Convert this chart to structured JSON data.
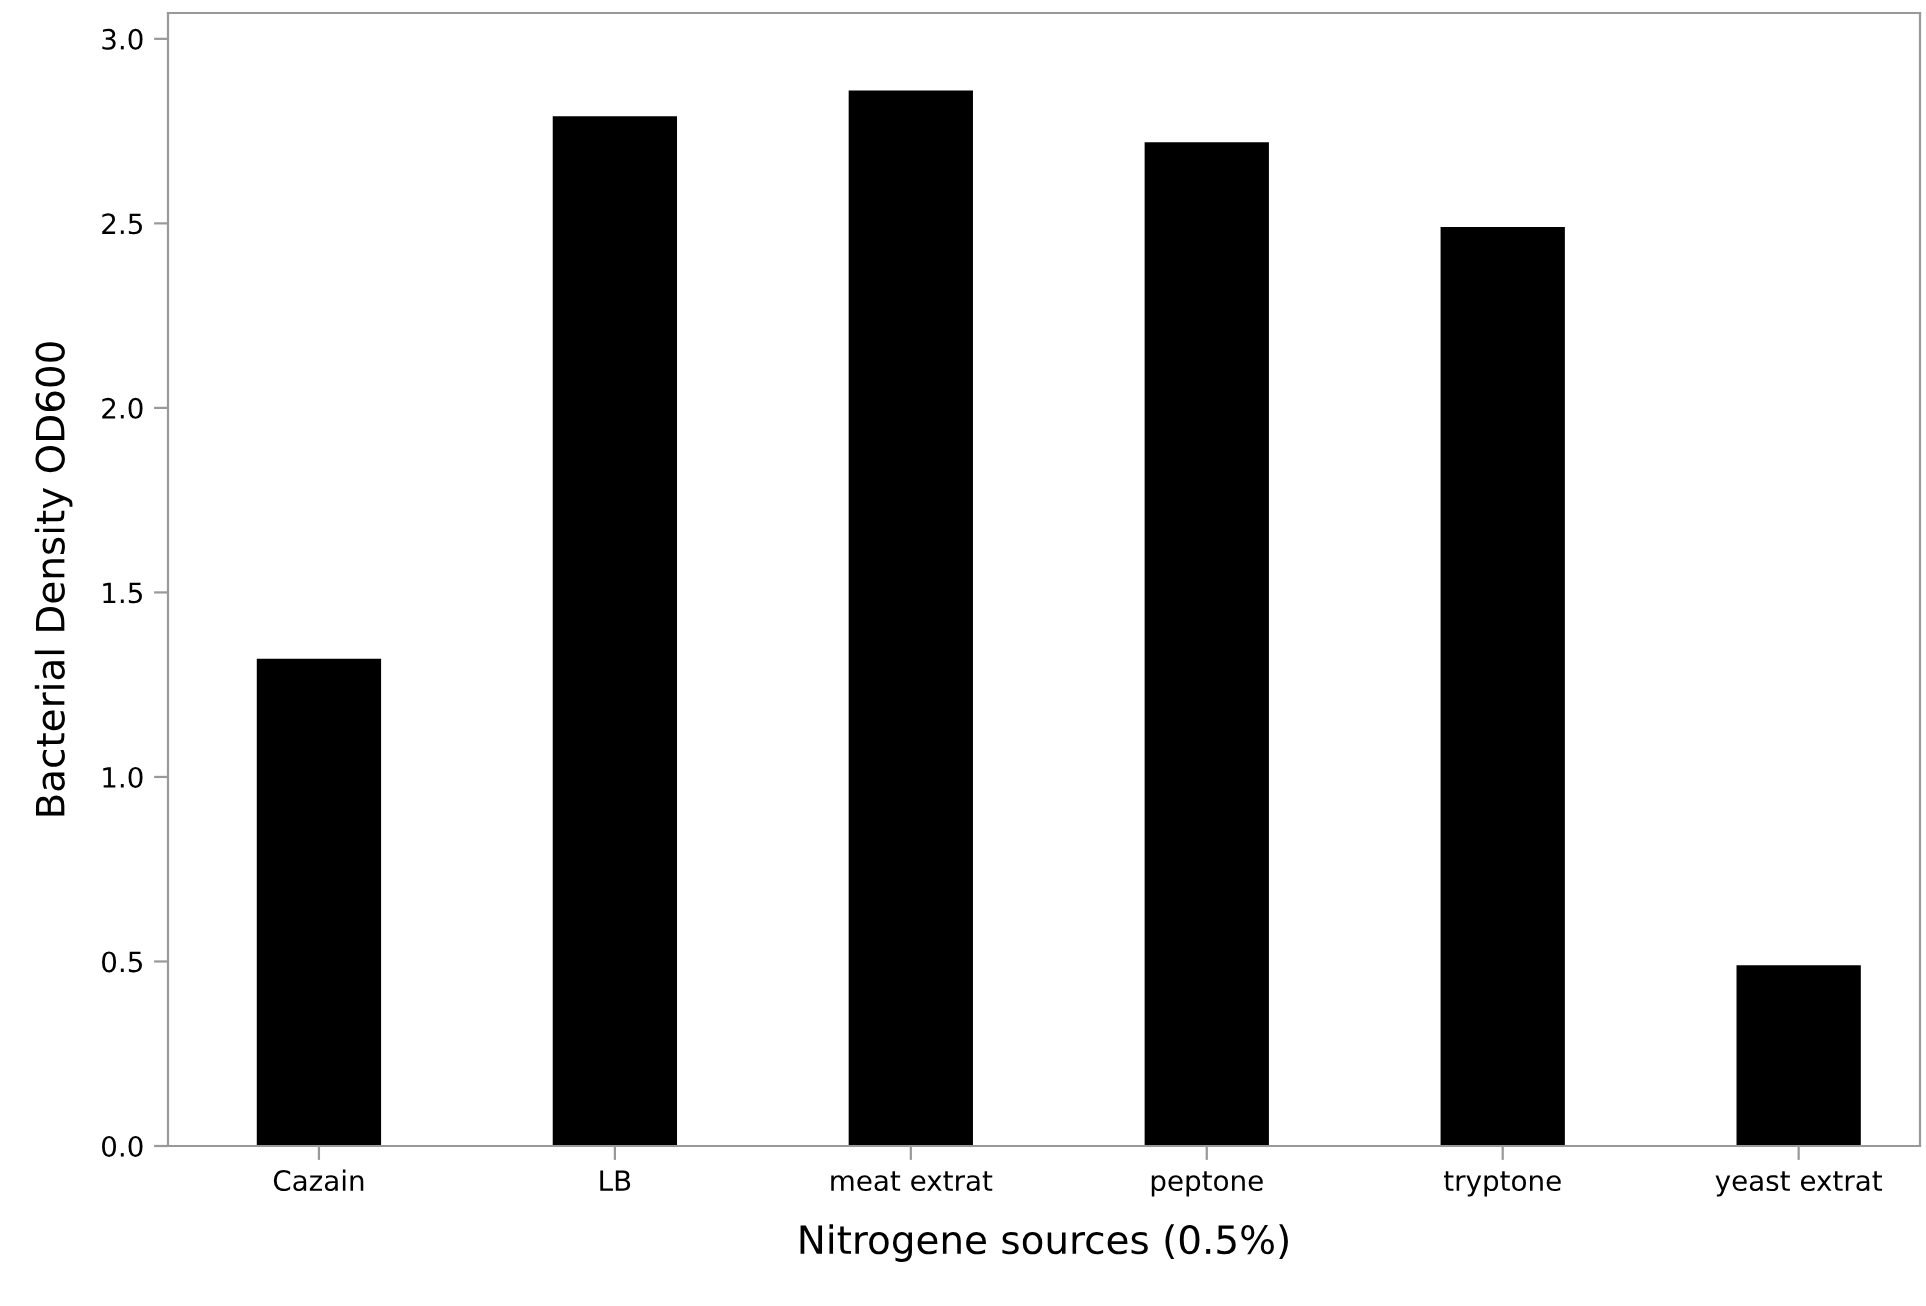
{
  "chart_data": {
    "type": "bar",
    "xlabel": "Nitrogene sources (0.5%)",
    "ylabel": "Bacterial Density OD600",
    "categories": [
      "Cazain",
      "LB",
      "meat extrat",
      "peptone",
      "tryptone",
      "yeast extrat"
    ],
    "values": [
      1.32,
      2.79,
      2.86,
      2.72,
      2.49,
      0.49
    ],
    "color": "#000000",
    "ylim": [
      0,
      3.07
    ],
    "yticks": [
      {
        "value": 0,
        "label": "0.0"
      },
      {
        "value": 0.5,
        "label": "0.5"
      },
      {
        "value": 1,
        "label": "1.0"
      },
      {
        "value": 1.5,
        "label": "1.5"
      },
      {
        "value": 2,
        "label": "2.0"
      },
      {
        "value": 2.5,
        "label": "2.5"
      },
      {
        "value": 3,
        "label": "3.0"
      }
    ],
    "grid": false,
    "legend": false
  }
}
